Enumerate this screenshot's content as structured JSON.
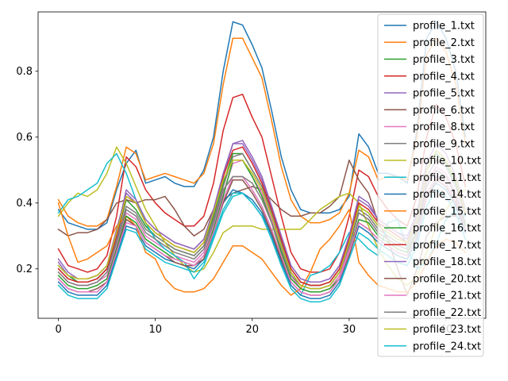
{
  "chart_data": {
    "type": "line",
    "title": "",
    "xlabel": "",
    "ylabel": "",
    "xlim": [
      -2.1,
      44.1
    ],
    "ylim": [
      0.05,
      0.98
    ],
    "x_ticks": [
      0,
      10,
      20,
      30,
      40
    ],
    "y_ticks": [
      0.2,
      0.4,
      0.6,
      0.8
    ],
    "x_tick_labels": [
      "0",
      "10",
      "20",
      "30",
      "40"
    ],
    "y_tick_labels": [
      "0.2",
      "0.4",
      "0.6",
      "0.8"
    ],
    "grid": false,
    "legend_position": "upper right",
    "x": [
      0,
      1,
      2,
      3,
      4,
      5,
      6,
      7,
      8,
      9,
      10,
      11,
      12,
      13,
      14,
      15,
      16,
      17,
      18,
      19,
      20,
      21,
      22,
      23,
      24,
      25,
      26,
      27,
      28,
      29,
      30,
      31,
      32,
      33,
      34,
      35,
      36,
      37,
      38,
      39,
      40,
      41,
      42
    ],
    "series": [
      {
        "name": "profile_1.txt",
        "color": "#1f77b4",
        "values": [
          0.38,
          0.34,
          0.33,
          0.32,
          0.32,
          0.34,
          0.44,
          0.52,
          0.56,
          0.46,
          0.47,
          0.48,
          0.46,
          0.45,
          0.45,
          0.5,
          0.6,
          0.8,
          0.95,
          0.94,
          0.88,
          0.81,
          0.68,
          0.54,
          0.44,
          0.38,
          0.37,
          0.37,
          0.37,
          0.38,
          0.42,
          0.61,
          0.57,
          0.49,
          0.49,
          0.48,
          0.46,
          0.62,
          0.9,
          0.95,
          0.9,
          0.8,
          0.6
        ]
      },
      {
        "name": "profile_2.txt",
        "color": "#ff7f0e",
        "values": [
          0.41,
          0.36,
          0.34,
          0.33,
          0.33,
          0.35,
          0.45,
          0.57,
          0.55,
          0.47,
          0.48,
          0.49,
          0.48,
          0.47,
          0.46,
          0.49,
          0.58,
          0.76,
          0.9,
          0.9,
          0.84,
          0.78,
          0.65,
          0.51,
          0.41,
          0.36,
          0.34,
          0.34,
          0.35,
          0.37,
          0.43,
          0.56,
          0.54,
          0.47,
          0.48,
          0.48,
          0.47,
          0.6,
          0.85,
          0.9,
          0.86,
          0.76,
          0.58
        ]
      },
      {
        "name": "profile_3.txt",
        "color": "#2ca02c",
        "values": [
          0.21,
          0.18,
          0.16,
          0.16,
          0.17,
          0.2,
          0.3,
          0.41,
          0.38,
          0.33,
          0.3,
          0.28,
          0.26,
          0.25,
          0.24,
          0.27,
          0.36,
          0.46,
          0.55,
          0.55,
          0.5,
          0.45,
          0.37,
          0.28,
          0.2,
          0.16,
          0.15,
          0.15,
          0.16,
          0.2,
          0.28,
          0.39,
          0.37,
          0.33,
          0.31,
          0.29,
          0.28,
          0.35,
          0.5,
          0.55,
          0.52,
          0.46,
          0.36
        ]
      },
      {
        "name": "profile_4.txt",
        "color": "#d62728",
        "values": [
          0.26,
          0.21,
          0.2,
          0.19,
          0.2,
          0.24,
          0.36,
          0.54,
          0.51,
          0.44,
          0.4,
          0.37,
          0.35,
          0.33,
          0.33,
          0.36,
          0.46,
          0.62,
          0.72,
          0.73,
          0.66,
          0.6,
          0.48,
          0.36,
          0.25,
          0.2,
          0.19,
          0.19,
          0.2,
          0.25,
          0.36,
          0.5,
          0.48,
          0.42,
          0.38,
          0.35,
          0.33,
          0.42,
          0.6,
          0.7,
          0.66,
          0.58,
          0.45
        ]
      },
      {
        "name": "profile_5.txt",
        "color": "#9467bd",
        "values": [
          0.23,
          0.19,
          0.17,
          0.17,
          0.18,
          0.21,
          0.32,
          0.43,
          0.4,
          0.35,
          0.32,
          0.3,
          0.28,
          0.27,
          0.26,
          0.29,
          0.38,
          0.48,
          0.58,
          0.58,
          0.53,
          0.47,
          0.39,
          0.3,
          0.21,
          0.17,
          0.16,
          0.16,
          0.17,
          0.21,
          0.3,
          0.41,
          0.39,
          0.35,
          0.33,
          0.31,
          0.3,
          0.37,
          0.52,
          0.58,
          0.55,
          0.48,
          0.38
        ]
      },
      {
        "name": "profile_6.txt",
        "color": "#8c564b",
        "values": [
          0.32,
          0.3,
          0.31,
          0.31,
          0.32,
          0.35,
          0.4,
          0.41,
          0.4,
          0.41,
          0.41,
          0.42,
          0.38,
          0.33,
          0.3,
          0.32,
          0.38,
          0.41,
          0.43,
          0.44,
          0.45,
          0.44,
          0.41,
          0.38,
          0.36,
          0.36,
          0.37,
          0.37,
          0.39,
          0.42,
          0.53,
          0.47,
          0.43,
          0.34,
          0.29,
          0.2,
          0.12,
          0.2,
          0.3,
          0.34,
          0.36,
          0.36,
          0.34
        ]
      },
      {
        "name": "profile_8.txt",
        "color": "#e377c2",
        "values": [
          0.19,
          0.16,
          0.15,
          0.15,
          0.16,
          0.18,
          0.27,
          0.37,
          0.35,
          0.3,
          0.28,
          0.26,
          0.24,
          0.23,
          0.22,
          0.25,
          0.33,
          0.43,
          0.52,
          0.53,
          0.48,
          0.43,
          0.35,
          0.26,
          0.18,
          0.14,
          0.13,
          0.13,
          0.14,
          0.18,
          0.26,
          0.37,
          0.35,
          0.31,
          0.29,
          0.27,
          0.26,
          0.32,
          0.46,
          0.51,
          0.49,
          0.43,
          0.34
        ]
      },
      {
        "name": "profile_9.txt",
        "color": "#7f7f7f",
        "values": [
          0.2,
          0.17,
          0.16,
          0.16,
          0.17,
          0.2,
          0.29,
          0.39,
          0.37,
          0.32,
          0.3,
          0.28,
          0.26,
          0.25,
          0.24,
          0.27,
          0.35,
          0.45,
          0.54,
          0.55,
          0.5,
          0.45,
          0.37,
          0.28,
          0.19,
          0.15,
          0.14,
          0.14,
          0.15,
          0.19,
          0.27,
          0.38,
          0.36,
          0.32,
          0.3,
          0.28,
          0.27,
          0.34,
          0.48,
          0.53,
          0.51,
          0.45,
          0.36
        ]
      },
      {
        "name": "profile_10.txt",
        "color": "#bcbd22",
        "values": [
          0.36,
          0.4,
          0.43,
          0.42,
          0.44,
          0.49,
          0.57,
          0.52,
          0.45,
          0.38,
          0.33,
          0.28,
          0.24,
          0.21,
          0.19,
          0.2,
          0.25,
          0.31,
          0.33,
          0.33,
          0.33,
          0.32,
          0.32,
          0.32,
          0.32,
          0.32,
          0.35,
          0.38,
          0.4,
          0.42,
          0.43,
          0.4,
          0.33,
          0.26,
          0.21,
          0.17,
          0.15,
          0.18,
          0.25,
          0.33,
          0.38,
          0.42,
          0.44
        ]
      },
      {
        "name": "profile_11.txt",
        "color": "#17becf",
        "values": [
          0.37,
          0.41,
          0.42,
          0.44,
          0.46,
          0.52,
          0.55,
          0.49,
          0.41,
          0.34,
          0.29,
          0.26,
          0.24,
          0.22,
          0.17,
          0.21,
          0.29,
          0.37,
          0.42,
          0.43,
          0.4,
          0.36,
          0.31,
          0.22,
          0.15,
          0.12,
          0.18,
          0.19,
          0.21,
          0.25,
          0.31,
          0.29,
          0.26,
          0.24,
          0.34,
          0.35,
          0.26,
          0.2,
          0.22,
          0.28,
          0.35,
          0.38,
          0.36
        ]
      },
      {
        "name": "profile_14.txt",
        "color": "#1f77b4",
        "values": [
          0.16,
          0.13,
          0.12,
          0.12,
          0.12,
          0.15,
          0.24,
          0.33,
          0.32,
          0.27,
          0.25,
          0.23,
          0.22,
          0.21,
          0.2,
          0.23,
          0.31,
          0.4,
          0.44,
          0.43,
          0.41,
          0.37,
          0.3,
          0.22,
          0.15,
          0.12,
          0.11,
          0.11,
          0.12,
          0.16,
          0.24,
          0.33,
          0.31,
          0.28,
          0.26,
          0.24,
          0.23,
          0.29,
          0.42,
          0.46,
          0.44,
          0.39,
          0.31
        ]
      },
      {
        "name": "profile_15.txt",
        "color": "#ff7f0e",
        "values": [
          0.4,
          0.3,
          0.22,
          0.23,
          0.25,
          0.27,
          0.33,
          0.36,
          0.33,
          0.25,
          0.23,
          0.17,
          0.14,
          0.13,
          0.13,
          0.14,
          0.17,
          0.22,
          0.27,
          0.27,
          0.25,
          0.23,
          0.19,
          0.15,
          0.12,
          0.14,
          0.19,
          0.26,
          0.29,
          0.33,
          0.38,
          0.22,
          0.18,
          0.15,
          0.14,
          0.13,
          0.13,
          0.16,
          0.22,
          0.27,
          0.29,
          0.28,
          0.25
        ]
      },
      {
        "name": "profile_16.txt",
        "color": "#2ca02c",
        "values": [
          0.18,
          0.15,
          0.14,
          0.14,
          0.15,
          0.17,
          0.26,
          0.36,
          0.34,
          0.29,
          0.27,
          0.25,
          0.23,
          0.22,
          0.21,
          0.24,
          0.32,
          0.42,
          0.53,
          0.53,
          0.48,
          0.42,
          0.34,
          0.25,
          0.17,
          0.14,
          0.13,
          0.13,
          0.14,
          0.17,
          0.25,
          0.35,
          0.34,
          0.3,
          0.28,
          0.26,
          0.25,
          0.31,
          0.45,
          0.5,
          0.48,
          0.42,
          0.33
        ]
      },
      {
        "name": "profile_17.txt",
        "color": "#d62728",
        "values": [
          0.2,
          0.17,
          0.16,
          0.16,
          0.17,
          0.2,
          0.3,
          0.42,
          0.4,
          0.34,
          0.31,
          0.29,
          0.27,
          0.26,
          0.25,
          0.28,
          0.37,
          0.48,
          0.56,
          0.57,
          0.52,
          0.46,
          0.38,
          0.29,
          0.2,
          0.16,
          0.15,
          0.15,
          0.16,
          0.2,
          0.29,
          0.4,
          0.38,
          0.34,
          0.32,
          0.3,
          0.28,
          0.35,
          0.5,
          0.56,
          0.53,
          0.47,
          0.37
        ]
      },
      {
        "name": "profile_18.txt",
        "color": "#9467bd",
        "values": [
          0.22,
          0.18,
          0.17,
          0.17,
          0.18,
          0.21,
          0.31,
          0.44,
          0.41,
          0.35,
          0.32,
          0.3,
          0.28,
          0.27,
          0.26,
          0.29,
          0.38,
          0.49,
          0.58,
          0.59,
          0.54,
          0.48,
          0.39,
          0.3,
          0.21,
          0.17,
          0.16,
          0.16,
          0.17,
          0.21,
          0.3,
          0.42,
          0.4,
          0.35,
          0.33,
          0.31,
          0.29,
          0.36,
          0.52,
          0.58,
          0.55,
          0.48,
          0.38
        ]
      },
      {
        "name": "profile_20.txt",
        "color": "#8c564b",
        "values": [
          0.17,
          0.14,
          0.13,
          0.13,
          0.14,
          0.16,
          0.25,
          0.35,
          0.33,
          0.28,
          0.26,
          0.24,
          0.22,
          0.21,
          0.21,
          0.23,
          0.31,
          0.4,
          0.47,
          0.47,
          0.43,
          0.38,
          0.31,
          0.23,
          0.16,
          0.13,
          0.12,
          0.12,
          0.13,
          0.17,
          0.24,
          0.34,
          0.32,
          0.29,
          0.27,
          0.25,
          0.24,
          0.3,
          0.42,
          0.47,
          0.45,
          0.4,
          0.32
        ]
      },
      {
        "name": "profile_21.txt",
        "color": "#e377c2",
        "values": [
          0.17,
          0.14,
          0.13,
          0.13,
          0.13,
          0.16,
          0.25,
          0.34,
          0.33,
          0.28,
          0.26,
          0.24,
          0.23,
          0.22,
          0.21,
          0.24,
          0.31,
          0.41,
          0.48,
          0.48,
          0.44,
          0.39,
          0.32,
          0.24,
          0.16,
          0.13,
          0.12,
          0.12,
          0.13,
          0.17,
          0.25,
          0.34,
          0.32,
          0.29,
          0.27,
          0.25,
          0.24,
          0.3,
          0.43,
          0.48,
          0.46,
          0.41,
          0.32
        ]
      },
      {
        "name": "profile_22.txt",
        "color": "#7f7f7f",
        "values": [
          0.19,
          0.16,
          0.15,
          0.15,
          0.16,
          0.19,
          0.28,
          0.38,
          0.36,
          0.31,
          0.29,
          0.27,
          0.25,
          0.24,
          0.23,
          0.26,
          0.34,
          0.44,
          0.48,
          0.48,
          0.46,
          0.41,
          0.34,
          0.26,
          0.18,
          0.15,
          0.14,
          0.14,
          0.15,
          0.19,
          0.27,
          0.37,
          0.35,
          0.31,
          0.29,
          0.27,
          0.26,
          0.32,
          0.45,
          0.5,
          0.48,
          0.42,
          0.34
        ]
      },
      {
        "name": "profile_23.txt",
        "color": "#bcbd22",
        "values": [
          0.21,
          0.18,
          0.17,
          0.17,
          0.18,
          0.21,
          0.31,
          0.42,
          0.4,
          0.34,
          0.31,
          0.29,
          0.27,
          0.26,
          0.25,
          0.28,
          0.37,
          0.47,
          0.53,
          0.53,
          0.49,
          0.44,
          0.36,
          0.27,
          0.19,
          0.15,
          0.14,
          0.14,
          0.15,
          0.19,
          0.28,
          0.39,
          0.37,
          0.33,
          0.31,
          0.29,
          0.28,
          0.35,
          0.5,
          0.56,
          0.53,
          0.47,
          0.37
        ]
      },
      {
        "name": "profile_24.txt",
        "color": "#17becf",
        "values": [
          0.15,
          0.12,
          0.11,
          0.11,
          0.11,
          0.14,
          0.23,
          0.32,
          0.31,
          0.26,
          0.24,
          0.22,
          0.21,
          0.2,
          0.19,
          0.22,
          0.3,
          0.38,
          0.43,
          0.43,
          0.4,
          0.36,
          0.29,
          0.21,
          0.14,
          0.11,
          0.1,
          0.1,
          0.11,
          0.15,
          0.23,
          0.31,
          0.29,
          0.26,
          0.24,
          0.22,
          0.21,
          0.27,
          0.39,
          0.44,
          0.42,
          0.37,
          0.29
        ]
      }
    ]
  }
}
